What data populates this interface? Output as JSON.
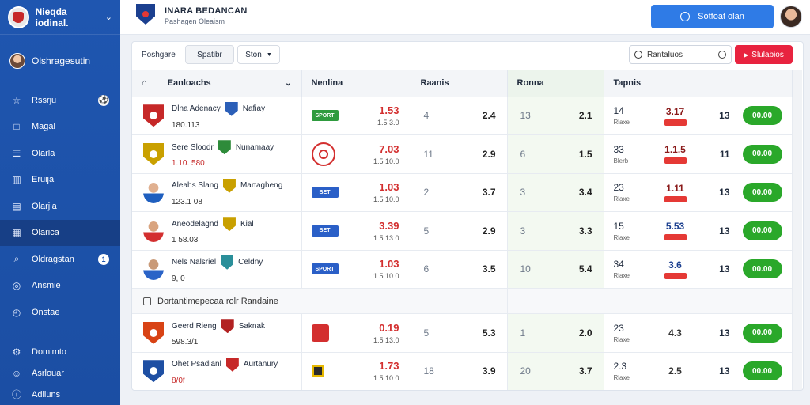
{
  "brand": {
    "name": "Nieqda iodinal."
  },
  "user": {
    "name": "Olshragesutin"
  },
  "nav": [
    {
      "label": "Rssrju",
      "icon": "trophy-icon",
      "badge": "ball"
    },
    {
      "label": "Magal",
      "icon": "calendar-icon"
    },
    {
      "label": "Olarla",
      "icon": "list-icon"
    },
    {
      "label": "Eruija",
      "icon": "chart-icon"
    },
    {
      "label": "Olarjia",
      "icon": "stats-icon"
    },
    {
      "label": "Olarica",
      "icon": "table-icon",
      "active": true
    },
    {
      "label": "Oldragstan",
      "icon": "search-icon",
      "badge": "1"
    },
    {
      "label": "Ansmie",
      "icon": "globe-icon"
    },
    {
      "label": "Onstae",
      "icon": "clock-icon"
    }
  ],
  "nav_bottom": [
    {
      "label": "Domimto",
      "icon": "settings-icon"
    },
    {
      "label": "Asrlouar",
      "icon": "user-icon"
    },
    {
      "label": "Adliuns",
      "icon": "help-icon"
    }
  ],
  "header": {
    "title": "INARA BEDANCAN",
    "subtitle": "Pashagen Oleaism",
    "cta": "Sotfoat olan"
  },
  "toolbar": {
    "label": "Poshgare",
    "select1": "Spatibr",
    "select2": "Ston",
    "search_placeholder": "Rantaluos",
    "red_button": "Slulabios"
  },
  "columns": {
    "match": "Eanloachs",
    "market": "Nenlina",
    "col3": "Raanis",
    "col4": "Ronna",
    "col5": "Tapnis"
  },
  "group_label": "Dortantimepecaa rolr Randaine",
  "rows": [
    {
      "team1": "Dlna Adenacy",
      "team2": "Nafiay",
      "kickoff": "180.113",
      "kick_red": false,
      "logo": "shield-red",
      "badge2": "#2b5fb8",
      "bk": "green",
      "bk_text": "SPORT",
      "odd": "1.53",
      "odd_sub": "1.5 3.0",
      "c3a": "4",
      "c3b": "2.4",
      "c4a": "13",
      "c4b": "2.1",
      "ts": "14",
      "ts_l": "Rlaxe",
      "o2": "3.17",
      "o2_style": "red",
      "cnt": "13",
      "bet": "00.00"
    },
    {
      "team1": "Sere Sloodr",
      "team2": "Nunamaay",
      "kickoff": "1.10. 580",
      "kick_red": true,
      "logo": "shield-yellow",
      "badge2": "#2e8b3a",
      "bk": "ring",
      "bk_text": "",
      "odd": "7.03",
      "odd_sub": "1.5 10.0",
      "c3a": "11",
      "c3b": "2.9",
      "c4a": "6",
      "c4b": "1.5",
      "ts": "33",
      "ts_l": "Blerb",
      "o2": "1.1.5",
      "o2_style": "red",
      "cnt": "11",
      "bet": "00.00"
    },
    {
      "team1": "Aleahs Slang",
      "team2": "Martagheng",
      "kickoff": "123.1 08",
      "kick_red": false,
      "logo": "player",
      "badge2": "#c9a000",
      "bk": "blue",
      "bk_text": "BET",
      "odd": "1.03",
      "odd_sub": "1.5 10.0",
      "c3a": "2",
      "c3b": "3.7",
      "c4a": "3",
      "c4b": "3.4",
      "ts": "23",
      "ts_l": "Rlaxe",
      "o2": "1.11",
      "o2_style": "red",
      "cnt": "13",
      "bet": "00.00"
    },
    {
      "team1": "Aneodelagnd",
      "team2": "Kial",
      "kickoff": "1 58.03",
      "kick_red": false,
      "logo": "player-red",
      "badge2": "#c9a000",
      "bk": "blue",
      "bk_text": "BET",
      "odd": "3.39",
      "odd_sub": "1.5 13.0",
      "c3a": "5",
      "c3b": "2.9",
      "c4a": "3",
      "c4b": "3.3",
      "ts": "15",
      "ts_l": "Rlaxe",
      "o2": "5.53",
      "o2_style": "blue",
      "cnt": "13",
      "bet": "00.00"
    },
    {
      "team1": "Nels Nalsriel",
      "team2": "Celdny",
      "kickoff": "9, 0",
      "kick_red": false,
      "logo": "player-blue",
      "badge2": "#2a8f9a",
      "bk": "blue",
      "bk_text": "SPORT",
      "odd": "1.03",
      "odd_sub": "1.5 10.0",
      "c3a": "6",
      "c3b": "3.5",
      "c4a": "10",
      "c4b": "5.4",
      "ts": "34",
      "ts_l": "Rlaxe",
      "o2": "3.6",
      "o2_style": "blue",
      "cnt": "13",
      "bet": "00.00"
    },
    {
      "team1": "Geerd Rieng",
      "team2": "Saknak",
      "kickoff": "598.3/1",
      "kick_red": false,
      "logo": "shield-orange",
      "badge2": "#b22222",
      "bk": "square",
      "bk_text": "",
      "odd": "0.19",
      "odd_sub": "1.5 13.0",
      "c3a": "5",
      "c3b": "5.3",
      "c4a": "1",
      "c4b": "2.0",
      "ts": "23",
      "ts_l": "Rlaxe",
      "o2": "4.3",
      "o2_style": "plain",
      "cnt": "13",
      "bet": "00.00"
    },
    {
      "team1": "Ohet Psadianl",
      "team2": "Aurtanury",
      "kickoff": "8/0f",
      "kick_red": true,
      "logo": "shield-blue",
      "badge2": "#c62828",
      "bk": "square-yellow",
      "bk_text": "",
      "odd": "1.73",
      "odd_sub": "1.5 10.0",
      "c3a": "18",
      "c3b": "3.9",
      "c4a": "20",
      "c4b": "3.7",
      "ts": "2.3",
      "ts_l": "Rlaxe",
      "o2": "2.5",
      "o2_style": "plain",
      "cnt": "13",
      "bet": "00.00"
    }
  ],
  "colors": {
    "sidebar": "#1f56b0",
    "active": "#173f86",
    "cta": "#2f7be6",
    "red": "#e8233f",
    "bet": "#2aa82a",
    "odd": "#d32f2f"
  }
}
